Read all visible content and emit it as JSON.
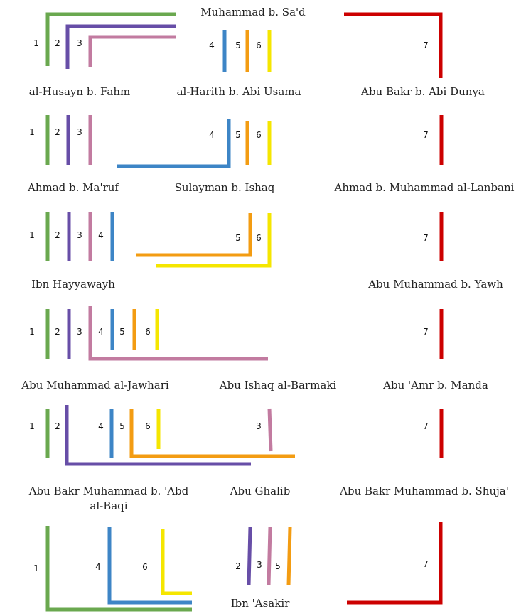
{
  "chains": [
    {
      "id": "1",
      "color": "#6aa84f"
    },
    {
      "id": "2",
      "color": "#674ea7"
    },
    {
      "id": "3",
      "color": "#c27ba0"
    },
    {
      "id": "4",
      "color": "#3d85c6"
    },
    {
      "id": "5",
      "color": "#f39c12"
    },
    {
      "id": "6",
      "color": "#f5e600"
    },
    {
      "id": "7",
      "color": "#cc0000"
    }
  ],
  "narrators": {
    "muhammad_b_sad": "Muhammad b. Sa'd",
    "al_husayn_b_fahm": "al-Husayn b. Fahm",
    "al_harith_b_abi_usama": "al-Harith b. Abi Usama",
    "abu_bakr_b_abi_dunya": "Abu Bakr b. Abi Dunya",
    "ahmad_b_maruf": "Ahmad b. Ma'ruf",
    "sulayman_b_ishaq": "Sulayman b. Ishaq",
    "ahmad_b_muhammad_al_lanbani": "Ahmad b. Muhammad al-Lanbani",
    "ibn_hayyawayh": "Ibn Hayyawayh",
    "abu_muhammad_b_yawh": "Abu Muhammad b. Yawh",
    "abu_muhammad_al_jawhari": "Abu Muhammad al-Jawhari",
    "abu_ishaq_al_barmaki": "Abu Ishaq al-Barmaki",
    "abu_amr_b_manda": "Abu 'Amr b. Manda",
    "abu_bakr_muhammad_b_abd_al_baqi_1": "Abu Bakr Muhammad b. 'Abd",
    "abu_bakr_muhammad_b_abd_al_baqi_2": "al-Baqi",
    "abu_ghalib": "Abu Ghalib",
    "abu_bakr_muhammad_b_shuja": "Abu Bakr Muhammad b. Shuja'",
    "ibn_asakir": "Ibn 'Asakir"
  }
}
